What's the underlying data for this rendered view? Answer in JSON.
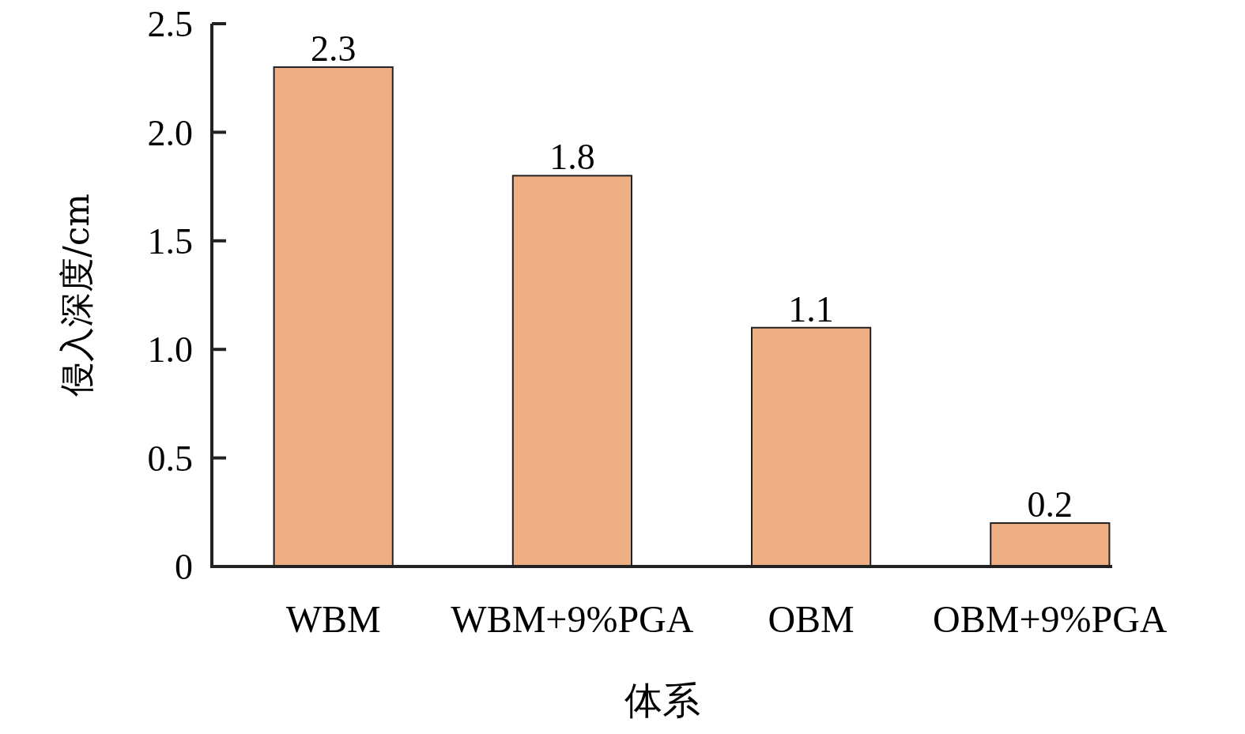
{
  "chart_data": {
    "type": "bar",
    "xlabel": "体系",
    "ylabel": "侵入深度/cm",
    "categories": [
      "WBM",
      "WBM+9%PGA",
      "OBM",
      "OBM+9%PGA"
    ],
    "values": [
      2.3,
      1.8,
      1.1,
      0.2
    ],
    "color": "#efaf84",
    "data_labels": true,
    "ylim": [
      0,
      2.5
    ],
    "yticks": [
      0,
      {
        "value": 0.5,
        "label": "0.5"
      },
      {
        "value": 1,
        "label": "1.0"
      },
      {
        "value": 1.5,
        "label": "1.5"
      },
      {
        "value": 2,
        "label": "2.0"
      },
      {
        "value": 2.5,
        "label": "2.5"
      }
    ],
    "grid": false
  }
}
